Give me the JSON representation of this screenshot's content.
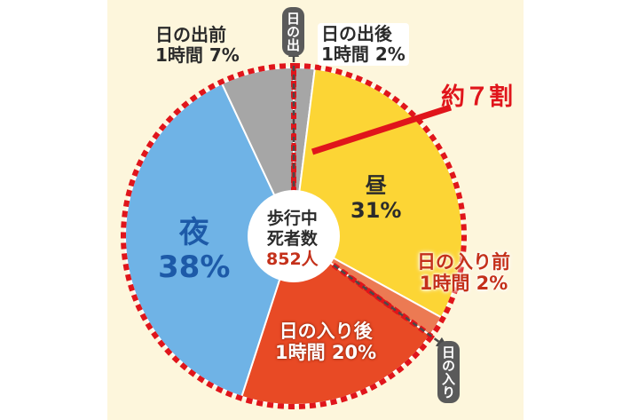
{
  "chart_data": {
    "type": "pie",
    "center_label": [
      "歩行中",
      "死者数"
    ],
    "total": "852人",
    "slices": [
      {
        "label": "日の出後\n1時間 2%",
        "value": 2,
        "color": "#a6a6a6"
      },
      {
        "label": "昼\n31%",
        "value": 31,
        "color": "#fcd535"
      },
      {
        "label": "日の入り前\n1時間 2%",
        "value": 2,
        "color": "#ec7a53"
      },
      {
        "label": "日の入り後\n1時間 20%",
        "value": 20,
        "color": "#e84a25"
      },
      {
        "label": "夜\n38%",
        "value": 38,
        "color": "#6fb3e6"
      },
      {
        "label": "日の出前\n1時間 7%",
        "value": 7,
        "color": "#a6a6a6"
      }
    ],
    "annotations": {
      "sunrise": "日の出",
      "sunset": "日の入り",
      "daylight_share": "約７割"
    }
  },
  "colors": {
    "background": "#fdf6dc",
    "dotted_outline": "#e0151b",
    "separator": "#ffffff",
    "arrow": "#4a4a4a"
  }
}
